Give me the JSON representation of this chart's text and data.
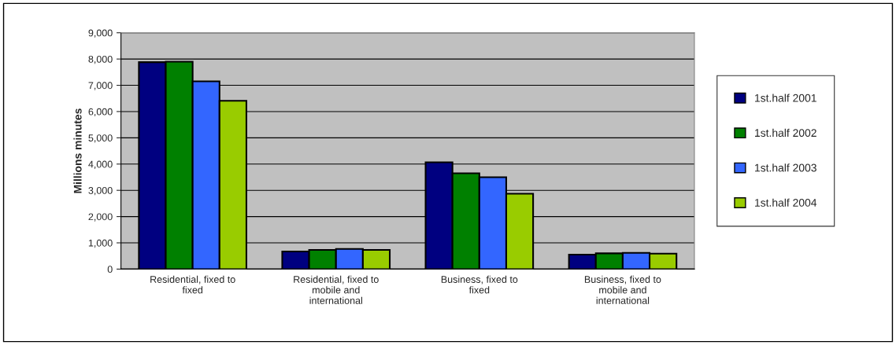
{
  "chart_data": {
    "type": "bar",
    "ylabel": "Millions minutes",
    "categories": [
      "Residential, fixed to fixed",
      "Residential, fixed to mobile and international",
      "Business, fixed to fixed",
      "Business, fixed to mobile and international"
    ],
    "series": [
      {
        "name": "1st.half 2001",
        "color": "#000080",
        "values": [
          7880,
          670,
          4070,
          550
        ]
      },
      {
        "name": "1st.half 2002",
        "color": "#008000",
        "values": [
          7900,
          730,
          3650,
          600
        ]
      },
      {
        "name": "1st.half 2003",
        "color": "#3366ff",
        "values": [
          7150,
          770,
          3500,
          620
        ]
      },
      {
        "name": "1st.half 2004",
        "color": "#99cc00",
        "values": [
          6410,
          730,
          2870,
          590
        ]
      }
    ],
    "ylim": [
      0,
      9000
    ],
    "yticks": [
      {
        "value": 0,
        "label": "0"
      },
      {
        "value": 1000,
        "label": "1,000"
      },
      {
        "value": 2000,
        "label": "2,000"
      },
      {
        "value": 3000,
        "label": "3,000"
      },
      {
        "value": 4000,
        "label": "4,000"
      },
      {
        "value": 5000,
        "label": "5,000"
      },
      {
        "value": 6000,
        "label": "6,000"
      },
      {
        "value": 7000,
        "label": "7,000"
      },
      {
        "value": 8000,
        "label": "8,000"
      },
      {
        "value": 9000,
        "label": "9,000"
      }
    ],
    "grid": "y",
    "legend": "right"
  }
}
